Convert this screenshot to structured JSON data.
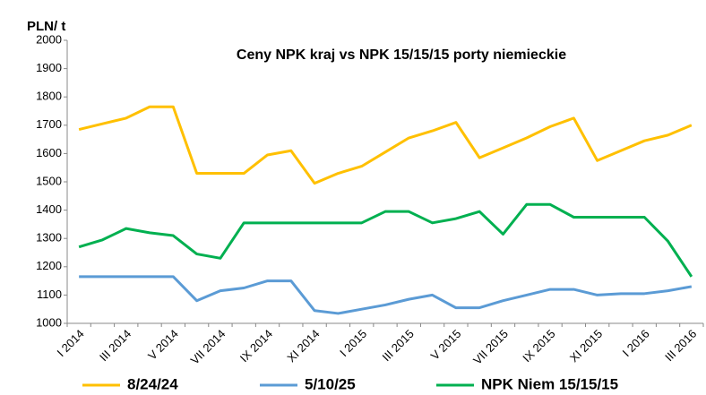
{
  "chart_data": {
    "type": "line",
    "title": "Ceny NPK kraj vs NPK 15/15/15 porty niemieckie",
    "y_label": "PLN/ t",
    "categories": [
      "I 2014",
      null,
      "III 2014",
      null,
      "V 2014",
      null,
      "VII 2014",
      null,
      "IX 2014",
      null,
      "XI 2014",
      null,
      "I 2015",
      null,
      "III 2015",
      null,
      "V 2015",
      null,
      "VII 2015",
      null,
      "IX 2015",
      null,
      "XI 2015",
      null,
      "I 2016",
      null,
      "III 2016"
    ],
    "series": [
      {
        "name": "8/24/24",
        "color": "#ffc000",
        "values": [
          1685,
          1705,
          1725,
          1765,
          1765,
          1530,
          1530,
          1530,
          1595,
          1610,
          1495,
          1530,
          1555,
          1605,
          1655,
          1680,
          1710,
          1585,
          1620,
          1655,
          1695,
          1725,
          1575,
          1610,
          1645,
          1665,
          1700
        ]
      },
      {
        "name": "5/10/25",
        "color": "#5b9bd5",
        "values": [
          1165,
          1165,
          1165,
          1165,
          1165,
          1080,
          1115,
          1125,
          1150,
          1150,
          1045,
          1035,
          1050,
          1065,
          1085,
          1100,
          1055,
          1055,
          1080,
          1100,
          1120,
          1120,
          1100,
          1105,
          1105,
          1115,
          1130
        ]
      },
      {
        "name": "NPK Niem 15/15/15",
        "color": "#00b050",
        "values": [
          1270,
          1295,
          1335,
          1320,
          1310,
          1245,
          1230,
          1355,
          1355,
          1355,
          1355,
          1355,
          1355,
          1395,
          1395,
          1355,
          1370,
          1395,
          1315,
          1420,
          1420,
          1375,
          1375,
          1375,
          1375,
          1290,
          1165
        ]
      }
    ],
    "ylim": [
      1000,
      2000
    ],
    "yticks": [
      1000,
      1100,
      1200,
      1300,
      1400,
      1500,
      1600,
      1700,
      1800,
      1900,
      2000
    ],
    "grid": false
  }
}
